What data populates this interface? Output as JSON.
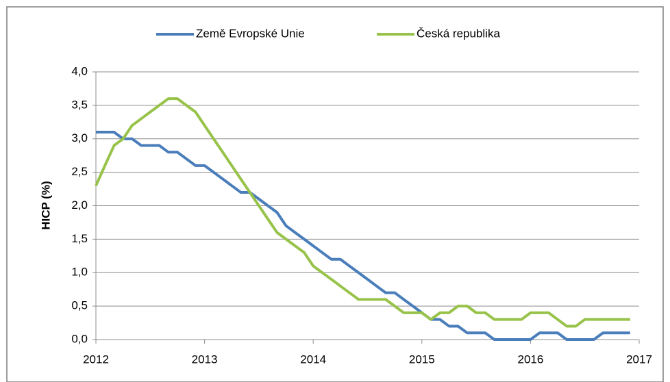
{
  "chart_data": {
    "type": "line",
    "x": [
      2012,
      2012.083,
      2012.167,
      2012.25,
      2012.333,
      2012.417,
      2012.5,
      2012.583,
      2012.667,
      2012.75,
      2012.833,
      2012.917,
      2013,
      2013.083,
      2013.167,
      2013.25,
      2013.333,
      2013.417,
      2013.5,
      2013.583,
      2013.667,
      2013.75,
      2013.833,
      2013.917,
      2014,
      2014.083,
      2014.167,
      2014.25,
      2014.333,
      2014.417,
      2014.5,
      2014.583,
      2014.667,
      2014.75,
      2014.833,
      2014.917,
      2015,
      2015.083,
      2015.167,
      2015.25,
      2015.333,
      2015.417,
      2015.5,
      2015.583,
      2015.667,
      2015.75,
      2015.833,
      2015.917,
      2016,
      2016.083,
      2016.167,
      2016.25,
      2016.333,
      2016.417,
      2016.5,
      2016.583,
      2016.667,
      2016.75,
      2016.833,
      2016.917
    ],
    "series": [
      {
        "name": "Země Evropské Unie",
        "color": "#4a7ebb",
        "values": [
          3.1,
          3.1,
          3.1,
          3.0,
          3.0,
          2.9,
          2.9,
          2.9,
          2.8,
          2.8,
          2.7,
          2.6,
          2.6,
          2.5,
          2.4,
          2.3,
          2.2,
          2.2,
          2.1,
          2.0,
          1.9,
          1.7,
          1.6,
          1.5,
          1.4,
          1.3,
          1.2,
          1.2,
          1.1,
          1.0,
          0.9,
          0.8,
          0.7,
          0.7,
          0.6,
          0.5,
          0.4,
          0.3,
          0.3,
          0.2,
          0.2,
          0.1,
          0.1,
          0.1,
          0.0,
          0.0,
          0.0,
          0.0,
          0.0,
          0.1,
          0.1,
          0.1,
          0.0,
          0.0,
          0.0,
          0.0,
          0.1,
          0.1,
          0.1,
          0.1
        ]
      },
      {
        "name": "Česká republika",
        "color": "#98c34a",
        "values": [
          2.3,
          2.6,
          2.9,
          3.0,
          3.2,
          3.3,
          3.4,
          3.5,
          3.6,
          3.6,
          3.5,
          3.4,
          3.2,
          3.0,
          2.8,
          2.6,
          2.4,
          2.2,
          2.0,
          1.8,
          1.6,
          1.5,
          1.4,
          1.3,
          1.1,
          1.0,
          0.9,
          0.8,
          0.7,
          0.6,
          0.6,
          0.6,
          0.6,
          0.5,
          0.4,
          0.4,
          0.4,
          0.3,
          0.4,
          0.4,
          0.5,
          0.5,
          0.4,
          0.4,
          0.3,
          0.3,
          0.3,
          0.3,
          0.4,
          0.4,
          0.4,
          0.3,
          0.2,
          0.2,
          0.3,
          0.3,
          0.3,
          0.3,
          0.3,
          0.3
        ]
      }
    ],
    "ylabel": "HICP (%)",
    "xlim": [
      2012,
      2017
    ],
    "xticks": [
      2012,
      2013,
      2014,
      2015,
      2016,
      2017
    ],
    "ylim": [
      0,
      4
    ],
    "yticks": [
      {
        "value": 0,
        "label": "0,0"
      },
      {
        "value": 0.5,
        "label": "0,5"
      },
      {
        "value": 1,
        "label": "1,0"
      },
      {
        "value": 1.5,
        "label": "1,5"
      },
      {
        "value": 2,
        "label": "2,0"
      },
      {
        "value": 2.5,
        "label": "2,5"
      },
      {
        "value": 3,
        "label": "3,0"
      },
      {
        "value": 3.5,
        "label": "3,5"
      },
      {
        "value": 4,
        "label": "4,0"
      }
    ],
    "grid": true,
    "legend": "top"
  }
}
